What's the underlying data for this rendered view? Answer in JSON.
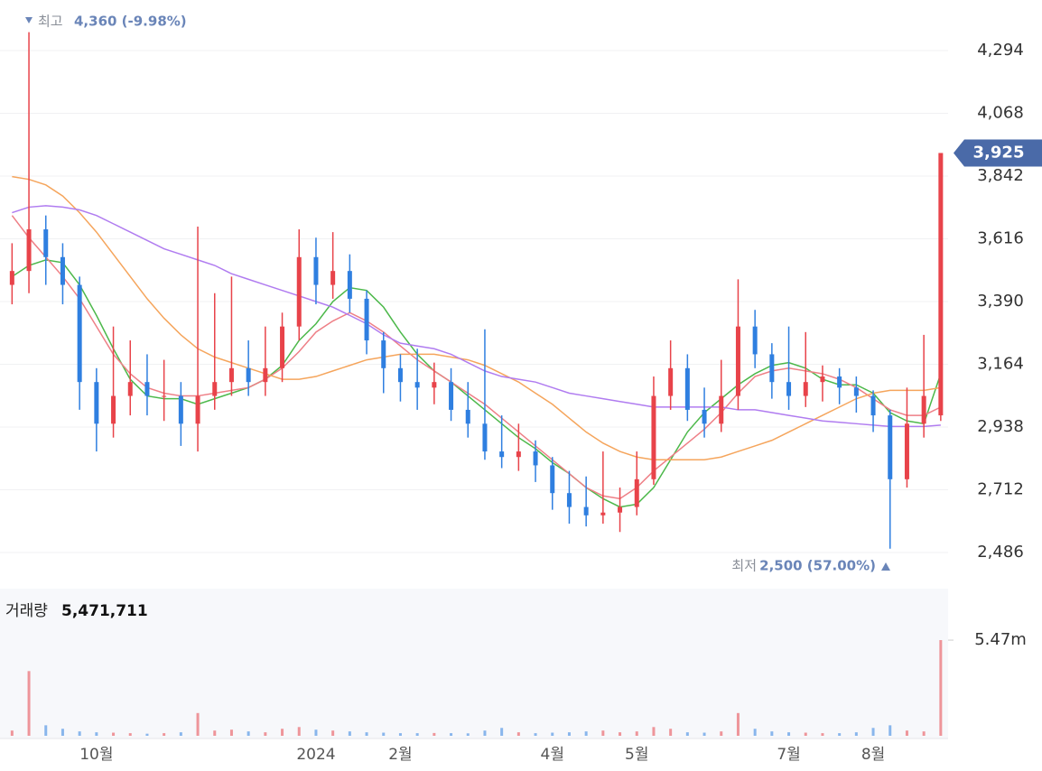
{
  "chart_data": {
    "type": "candlestick",
    "categories": [
      null,
      null,
      null,
      null,
      null,
      "10월",
      null,
      null,
      null,
      null,
      null,
      null,
      null,
      null,
      null,
      null,
      null,
      null,
      "2024",
      null,
      null,
      null,
      null,
      "2월",
      null,
      null,
      null,
      null,
      null,
      null,
      null,
      null,
      "4월",
      null,
      null,
      null,
      null,
      "5월",
      null,
      null,
      null,
      null,
      null,
      null,
      null,
      null,
      "7월",
      null,
      null,
      null,
      null,
      "8월",
      null,
      null,
      null,
      null
    ],
    "open": [
      3450,
      3500,
      3650,
      3550,
      3450,
      3100,
      2950,
      3050,
      3100,
      3050,
      3050,
      2950,
      3050,
      3100,
      3150,
      3100,
      3150,
      3300,
      3550,
      3450,
      3500,
      3400,
      3250,
      3150,
      3100,
      3080,
      3100,
      3000,
      2950,
      2850,
      2830,
      2850,
      2800,
      2700,
      2650,
      2620,
      2630,
      2650,
      2750,
      3050,
      3150,
      3000,
      2950,
      3050,
      3300,
      3200,
      3100,
      3050,
      3100,
      3120,
      3080,
      3050,
      2980,
      2750,
      2950,
      2980
    ],
    "high": [
      3600,
      4360,
      3700,
      3600,
      3480,
      3150,
      3300,
      3250,
      3200,
      3180,
      3100,
      3660,
      3420,
      3480,
      3250,
      3300,
      3350,
      3650,
      3620,
      3640,
      3560,
      3430,
      3280,
      3200,
      3220,
      3170,
      3150,
      3100,
      3290,
      2980,
      2950,
      2890,
      2830,
      2780,
      2760,
      2850,
      2720,
      2850,
      3120,
      3250,
      3200,
      3080,
      3180,
      3470,
      3360,
      3240,
      3300,
      3280,
      3160,
      3150,
      3120,
      3070,
      3000,
      3080,
      3270,
      3925
    ],
    "low": [
      3380,
      3420,
      3450,
      3380,
      3000,
      2850,
      2900,
      2980,
      2980,
      2960,
      2870,
      2850,
      3000,
      3050,
      3050,
      3050,
      3100,
      3250,
      3380,
      3400,
      3350,
      3200,
      3060,
      3030,
      3000,
      3020,
      2960,
      2900,
      2820,
      2790,
      2780,
      2740,
      2640,
      2590,
      2580,
      2590,
      2560,
      2620,
      2730,
      3000,
      2960,
      2900,
      2920,
      3000,
      3150,
      3040,
      3000,
      3010,
      3030,
      3020,
      2990,
      2920,
      2500,
      2720,
      2900,
      2960
    ],
    "close": [
      3500,
      3650,
      3550,
      3450,
      3100,
      2950,
      3050,
      3100,
      3050,
      3050,
      2950,
      3050,
      3100,
      3150,
      3100,
      3150,
      3300,
      3550,
      3450,
      3500,
      3400,
      3250,
      3150,
      3100,
      3080,
      3100,
      3000,
      2950,
      2850,
      2830,
      2850,
      2800,
      2700,
      2650,
      2620,
      2630,
      2650,
      2750,
      3050,
      3150,
      3000,
      2950,
      3050,
      3300,
      3200,
      3100,
      3050,
      3100,
      3120,
      3080,
      3050,
      2980,
      2750,
      2950,
      3050,
      3925
    ],
    "up_color": "#e8434a",
    "down_color": "#2f7fe0",
    "moving_averages": [
      {
        "color": "#4cb84a",
        "values": [
          3480,
          3520,
          3540,
          3530,
          3450,
          3340,
          3220,
          3110,
          3050,
          3040,
          3040,
          3020,
          3040,
          3060,
          3080,
          3110,
          3160,
          3250,
          3310,
          3390,
          3440,
          3430,
          3370,
          3280,
          3200,
          3140,
          3100,
          3050,
          3000,
          2950,
          2900,
          2860,
          2810,
          2770,
          2720,
          2680,
          2650,
          2660,
          2720,
          2820,
          2920,
          2990,
          3040,
          3090,
          3130,
          3160,
          3170,
          3150,
          3110,
          3090,
          3090,
          3060,
          2990,
          2960,
          2950,
          3130
        ]
      },
      {
        "color": "#ee7f86",
        "values": [
          3700,
          3620,
          3550,
          3480,
          3400,
          3300,
          3200,
          3130,
          3080,
          3060,
          3050,
          3050,
          3060,
          3070,
          3080,
          3110,
          3150,
          3210,
          3280,
          3320,
          3350,
          3320,
          3280,
          3230,
          3180,
          3140,
          3100,
          3060,
          3020,
          2970,
          2920,
          2870,
          2820,
          2770,
          2720,
          2690,
          2680,
          2720,
          2780,
          2830,
          2880,
          2930,
          2990,
          3060,
          3120,
          3140,
          3150,
          3140,
          3130,
          3110,
          3080,
          3040,
          3000,
          2980,
          2980,
          3010
        ]
      },
      {
        "color": "#f5a55c",
        "values": [
          3840,
          3830,
          3810,
          3770,
          3710,
          3640,
          3560,
          3480,
          3400,
          3330,
          3270,
          3220,
          3190,
          3170,
          3150,
          3130,
          3110,
          3110,
          3120,
          3140,
          3160,
          3180,
          3190,
          3200,
          3200,
          3200,
          3190,
          3180,
          3160,
          3130,
          3100,
          3060,
          3020,
          2970,
          2920,
          2880,
          2850,
          2830,
          2820,
          2820,
          2820,
          2820,
          2830,
          2850,
          2870,
          2890,
          2920,
          2950,
          2980,
          3010,
          3040,
          3060,
          3070,
          3070,
          3070,
          3080
        ]
      },
      {
        "color": "#b07cf0",
        "values": [
          3710,
          3730,
          3735,
          3730,
          3720,
          3700,
          3670,
          3640,
          3610,
          3580,
          3560,
          3540,
          3520,
          3490,
          3470,
          3450,
          3430,
          3410,
          3390,
          3370,
          3340,
          3310,
          3270,
          3240,
          3230,
          3220,
          3200,
          3170,
          3140,
          3120,
          3110,
          3100,
          3080,
          3060,
          3050,
          3040,
          3030,
          3020,
          3010,
          3010,
          3010,
          3010,
          3010,
          3000,
          3000,
          2990,
          2980,
          2970,
          2960,
          2955,
          2950,
          2945,
          2940,
          2940,
          2940,
          2945
        ]
      }
    ],
    "ylim": [
      2395,
      4476
    ],
    "yticks": [
      {
        "value": 2486,
        "label": "2,486"
      },
      {
        "value": 2712,
        "label": "2,712"
      },
      {
        "value": 2938,
        "label": "2,938"
      },
      {
        "value": 3164,
        "label": "3,164"
      },
      {
        "value": 3390,
        "label": "3,390"
      },
      {
        "value": 3616,
        "label": "3,616"
      },
      {
        "value": 3842,
        "label": "3,842"
      },
      {
        "value": 4068,
        "label": "4,068"
      },
      {
        "value": 4294,
        "label": "4,294"
      }
    ],
    "grid": true,
    "current_price": {
      "value": 3925,
      "label": "3,925",
      "color": "#4a6aa8"
    },
    "high_annotation": {
      "prefix": "최고",
      "text": "4,360 (-9.98%)"
    },
    "low_annotation": {
      "prefix": "최저",
      "text": "2,500 (57.00%)"
    },
    "volume": {
      "label": "거래량",
      "value_text": "5,471,711",
      "values": [
        300000,
        3700000,
        600000,
        400000,
        250000,
        200000,
        180000,
        150000,
        120000,
        150000,
        200000,
        1300000,
        300000,
        350000,
        250000,
        200000,
        400000,
        500000,
        350000,
        300000,
        250000,
        200000,
        180000,
        150000,
        150000,
        160000,
        150000,
        140000,
        300000,
        450000,
        200000,
        150000,
        180000,
        200000,
        250000,
        300000,
        200000,
        250000,
        500000,
        400000,
        200000,
        180000,
        250000,
        1300000,
        400000,
        250000,
        200000,
        180000,
        150000,
        150000,
        200000,
        450000,
        600000,
        300000,
        250000,
        5471711
      ],
      "ylim": [
        0,
        8260000
      ],
      "yticks": [
        {
          "value": 5470000,
          "label": "5.47m"
        }
      ]
    }
  }
}
